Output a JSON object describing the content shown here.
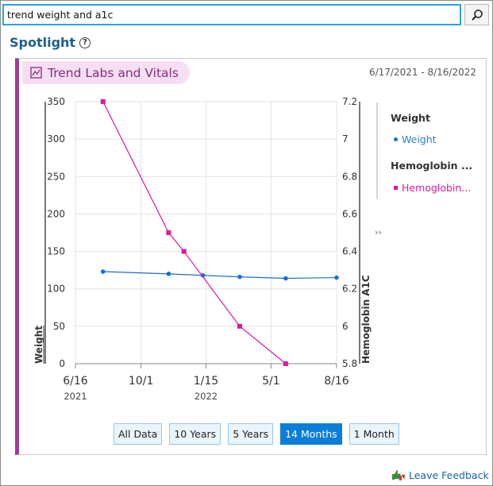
{
  "search": {
    "value": "trend weight and a1c",
    "button_icon": "magnifier-icon"
  },
  "spotlight": {
    "title": "Spotlight",
    "help_glyph": "?"
  },
  "card": {
    "title": "Trend Labs and Vitals",
    "title_icon": "line-chart-icon",
    "date_range": "6/17/2021 - 8/16/2022",
    "accent_color": "#9c3f98"
  },
  "legend": {
    "groups": [
      {
        "title": "Weight",
        "item": "Weight",
        "color": "#1a6fd1",
        "marker": "circle"
      },
      {
        "title": "Hemoglobin ...",
        "item": "Hemoglobin...",
        "color": "#e0189a",
        "marker": "square"
      }
    ],
    "expand_glyph": "››"
  },
  "chart_data": {
    "type": "line",
    "x_axis": {
      "tick_labels": [
        "6/16",
        "10/1",
        "1/15",
        "5/1",
        "8/16"
      ],
      "year_labels": [
        {
          "under": "6/16",
          "text": "2021"
        },
        {
          "under": "1/15",
          "text": "2022"
        }
      ],
      "range": [
        "2021-06-16",
        "2022-08-16"
      ]
    },
    "y_left": {
      "label": "Weight",
      "range": [
        0,
        350
      ],
      "ticks": [
        0,
        50,
        100,
        150,
        200,
        250,
        300,
        350
      ]
    },
    "y_right": {
      "label": "Hemoglobin A1C",
      "range": [
        5.8,
        7.2
      ],
      "ticks": [
        "5.8",
        "6",
        "6.2",
        "6.4",
        "6.6",
        "6.8",
        "7",
        "7.2"
      ]
    },
    "grid": true,
    "series": [
      {
        "name": "Weight",
        "axis": "left",
        "color": "#1a6fd1",
        "marker": "circle",
        "points": [
          {
            "x": "2021-07-31",
            "y": 123
          },
          {
            "x": "2021-11-15",
            "y": 120
          },
          {
            "x": "2022-01-10",
            "y": 118
          },
          {
            "x": "2022-03-11",
            "y": 116
          },
          {
            "x": "2022-05-25",
            "y": 114
          },
          {
            "x": "2022-08-16",
            "y": 115
          }
        ]
      },
      {
        "name": "Hemoglobin A1C",
        "axis": "right",
        "color": "#e0189a",
        "marker": "square",
        "points": [
          {
            "x": "2021-07-31",
            "y": 7.2
          },
          {
            "x": "2021-11-15",
            "y": 6.5
          },
          {
            "x": "2021-12-10",
            "y": 6.4
          },
          {
            "x": "2022-03-11",
            "y": 6.0
          },
          {
            "x": "2022-05-25",
            "y": 5.8
          }
        ]
      }
    ]
  },
  "range_buttons": [
    {
      "label": "All Data",
      "active": false
    },
    {
      "label": "10 Years",
      "active": false
    },
    {
      "label": "5 Years",
      "active": false
    },
    {
      "label": "14 Months",
      "active": true
    },
    {
      "label": "1 Month",
      "active": false
    }
  ],
  "feedback": {
    "label": "Leave Feedback",
    "icon": "thumbs-feedback-icon"
  }
}
